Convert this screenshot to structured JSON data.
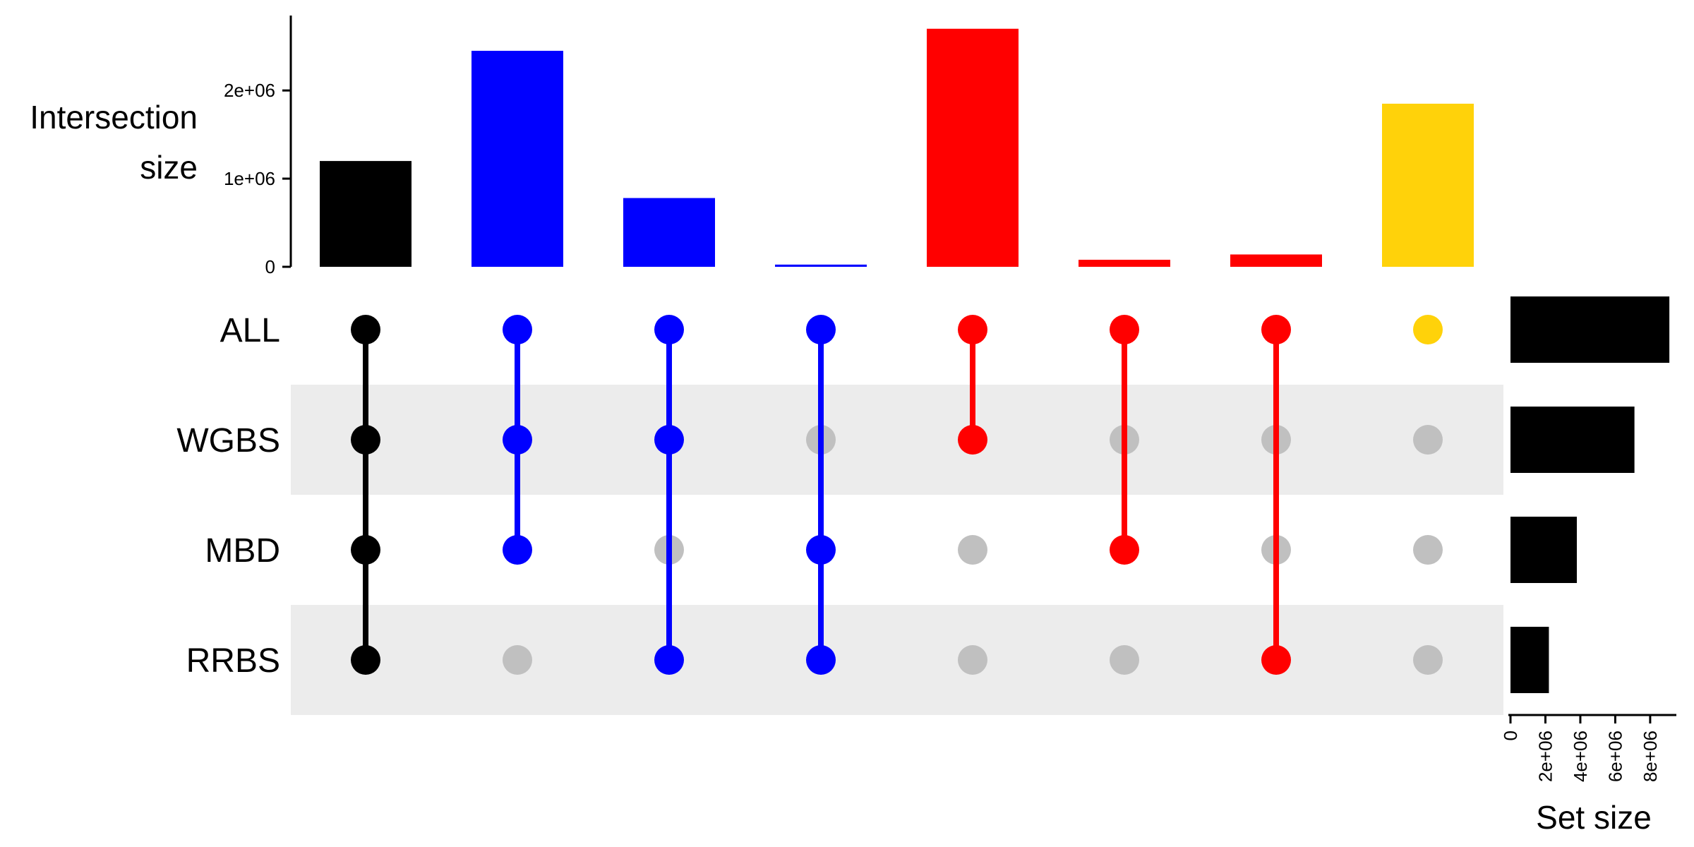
{
  "chart_data": {
    "type": "upset",
    "intersection_axis": {
      "title_lines": [
        "Intersection",
        "size"
      ],
      "ticks": [
        {
          "value": 0,
          "label": "0"
        },
        {
          "value": 1000000,
          "label": "1e+06"
        },
        {
          "value": 2000000,
          "label": "2e+06"
        }
      ],
      "ylim": [
        0,
        2850000
      ]
    },
    "set_size_axis": {
      "title": "Set size",
      "ticks": [
        {
          "value": 0,
          "label": "0"
        },
        {
          "value": 2000000,
          "label": "2e+06"
        },
        {
          "value": 4000000,
          "label": "4e+06"
        },
        {
          "value": 6000000,
          "label": "6e+06"
        },
        {
          "value": 8000000,
          "label": "8e+06"
        }
      ],
      "xlim": [
        0,
        9500000
      ]
    },
    "sets": [
      {
        "name": "ALL",
        "size": 9100000
      },
      {
        "name": "WGBS",
        "size": 7100000
      },
      {
        "name": "MBD",
        "size": 3800000
      },
      {
        "name": "RRBS",
        "size": 2200000
      }
    ],
    "intersections": [
      {
        "sets": [
          "ALL",
          "WGBS",
          "MBD",
          "RRBS"
        ],
        "size": 1200000,
        "color": "#000000"
      },
      {
        "sets": [
          "ALL",
          "WGBS",
          "MBD"
        ],
        "size": 2450000,
        "color": "#0000ff"
      },
      {
        "sets": [
          "ALL",
          "WGBS",
          "RRBS"
        ],
        "size": 780000,
        "color": "#0000ff"
      },
      {
        "sets": [
          "ALL",
          "MBD",
          "RRBS"
        ],
        "size": 25000,
        "color": "#0000ff"
      },
      {
        "sets": [
          "ALL",
          "WGBS"
        ],
        "size": 2700000,
        "color": "#ff0000"
      },
      {
        "sets": [
          "ALL",
          "MBD"
        ],
        "size": 80000,
        "color": "#ff0000"
      },
      {
        "sets": [
          "ALL",
          "RRBS"
        ],
        "size": 140000,
        "color": "#ff0000"
      },
      {
        "sets": [
          "ALL"
        ],
        "size": 1850000,
        "color": "#ffd20a"
      }
    ],
    "colors": {
      "inactive_dot": "#c0c0c0",
      "stripe": "#ececec",
      "set_bar": "#000000"
    }
  }
}
